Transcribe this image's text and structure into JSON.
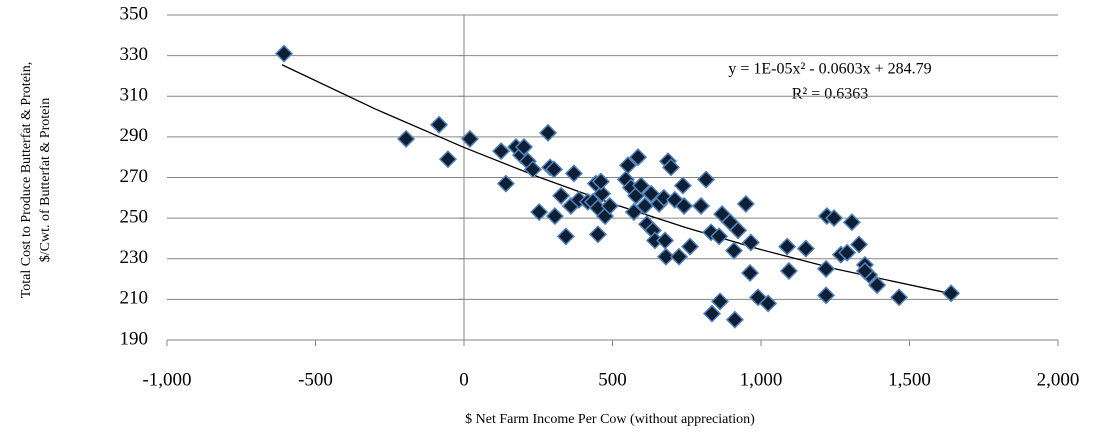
{
  "chart_data": {
    "type": "scatter",
    "x_label": "$ Net Farm Income  Per Cow (without appreciation)",
    "y_label": [
      "Total Cost to Produce Butterfat & Protein,",
      "$/Cwt. of Butterfat & Protein"
    ],
    "annotations": [
      "y = 1E-05x² - 0.0603x + 284.79",
      "R² = 0.6363"
    ],
    "x": [
      -606,
      -195,
      -84,
      -54,
      20,
      125,
      141,
      175,
      192,
      215,
      202,
      232,
      253,
      283,
      290,
      303,
      306,
      327,
      343,
      360,
      370,
      387,
      417,
      434,
      444,
      451,
      451,
      465,
      461,
      475,
      491,
      545,
      552,
      562,
      572,
      579,
      586,
      596,
      609,
      616,
      630,
      636,
      643,
      657,
      673,
      687,
      697,
      677,
      680,
      710,
      724,
      737,
      741,
      761,
      798,
      815,
      832,
      835,
      859,
      862,
      869,
      896,
      909,
      912,
      923,
      949,
      963,
      966,
      990,
      1024,
      1088,
      1094,
      1151,
      1219,
      1222,
      1246,
      1269,
      1290,
      1306,
      1330,
      1350,
      1364,
      1391,
      1465,
      1640,
      1219,
      1350
    ],
    "values": [
      331,
      289,
      296,
      279,
      289,
      283,
      267,
      285,
      281,
      278,
      285,
      274,
      253,
      292,
      275,
      274,
      251,
      261,
      241,
      256,
      272,
      259,
      258,
      258,
      267,
      242,
      255,
      262,
      268,
      251,
      256,
      269,
      276,
      265,
      253,
      261,
      280,
      266,
      256,
      247,
      262,
      244,
      239,
      257,
      260,
      278,
      275,
      239,
      231,
      259,
      231,
      266,
      256,
      236,
      256,
      269,
      243,
      203,
      241,
      209,
      252,
      248,
      234,
      200,
      244,
      257,
      223,
      238,
      211,
      208,
      236,
      224,
      235,
      225,
      251,
      250,
      232,
      233,
      248,
      237,
      227,
      222,
      217,
      211,
      213,
      212,
      224
    ],
    "color": "#0f1f33",
    "edge_color": "#4f81bd",
    "trendline": {
      "x": [
        -613,
        -300,
        0,
        250,
        500,
        750,
        1000,
        1250,
        1640
      ],
      "values": [
        325.5,
        303.8,
        284.8,
        270.3,
        257.1,
        245.2,
        234.5,
        225.0,
        212.8
      ],
      "color": "#000000"
    },
    "xlim": [
      -1000,
      2000
    ],
    "xticks": [
      {
        "value": -1000,
        "label": "-1,000"
      },
      -500,
      0,
      500,
      {
        "value": 1000,
        "label": "1,000"
      },
      {
        "value": 1500,
        "label": "1,500"
      },
      {
        "value": 2000,
        "label": "2,000"
      }
    ],
    "ylim": [
      190,
      350
    ],
    "yticks": [
      190,
      210,
      230,
      250,
      270,
      290,
      310,
      330,
      350
    ],
    "grid": true
  }
}
